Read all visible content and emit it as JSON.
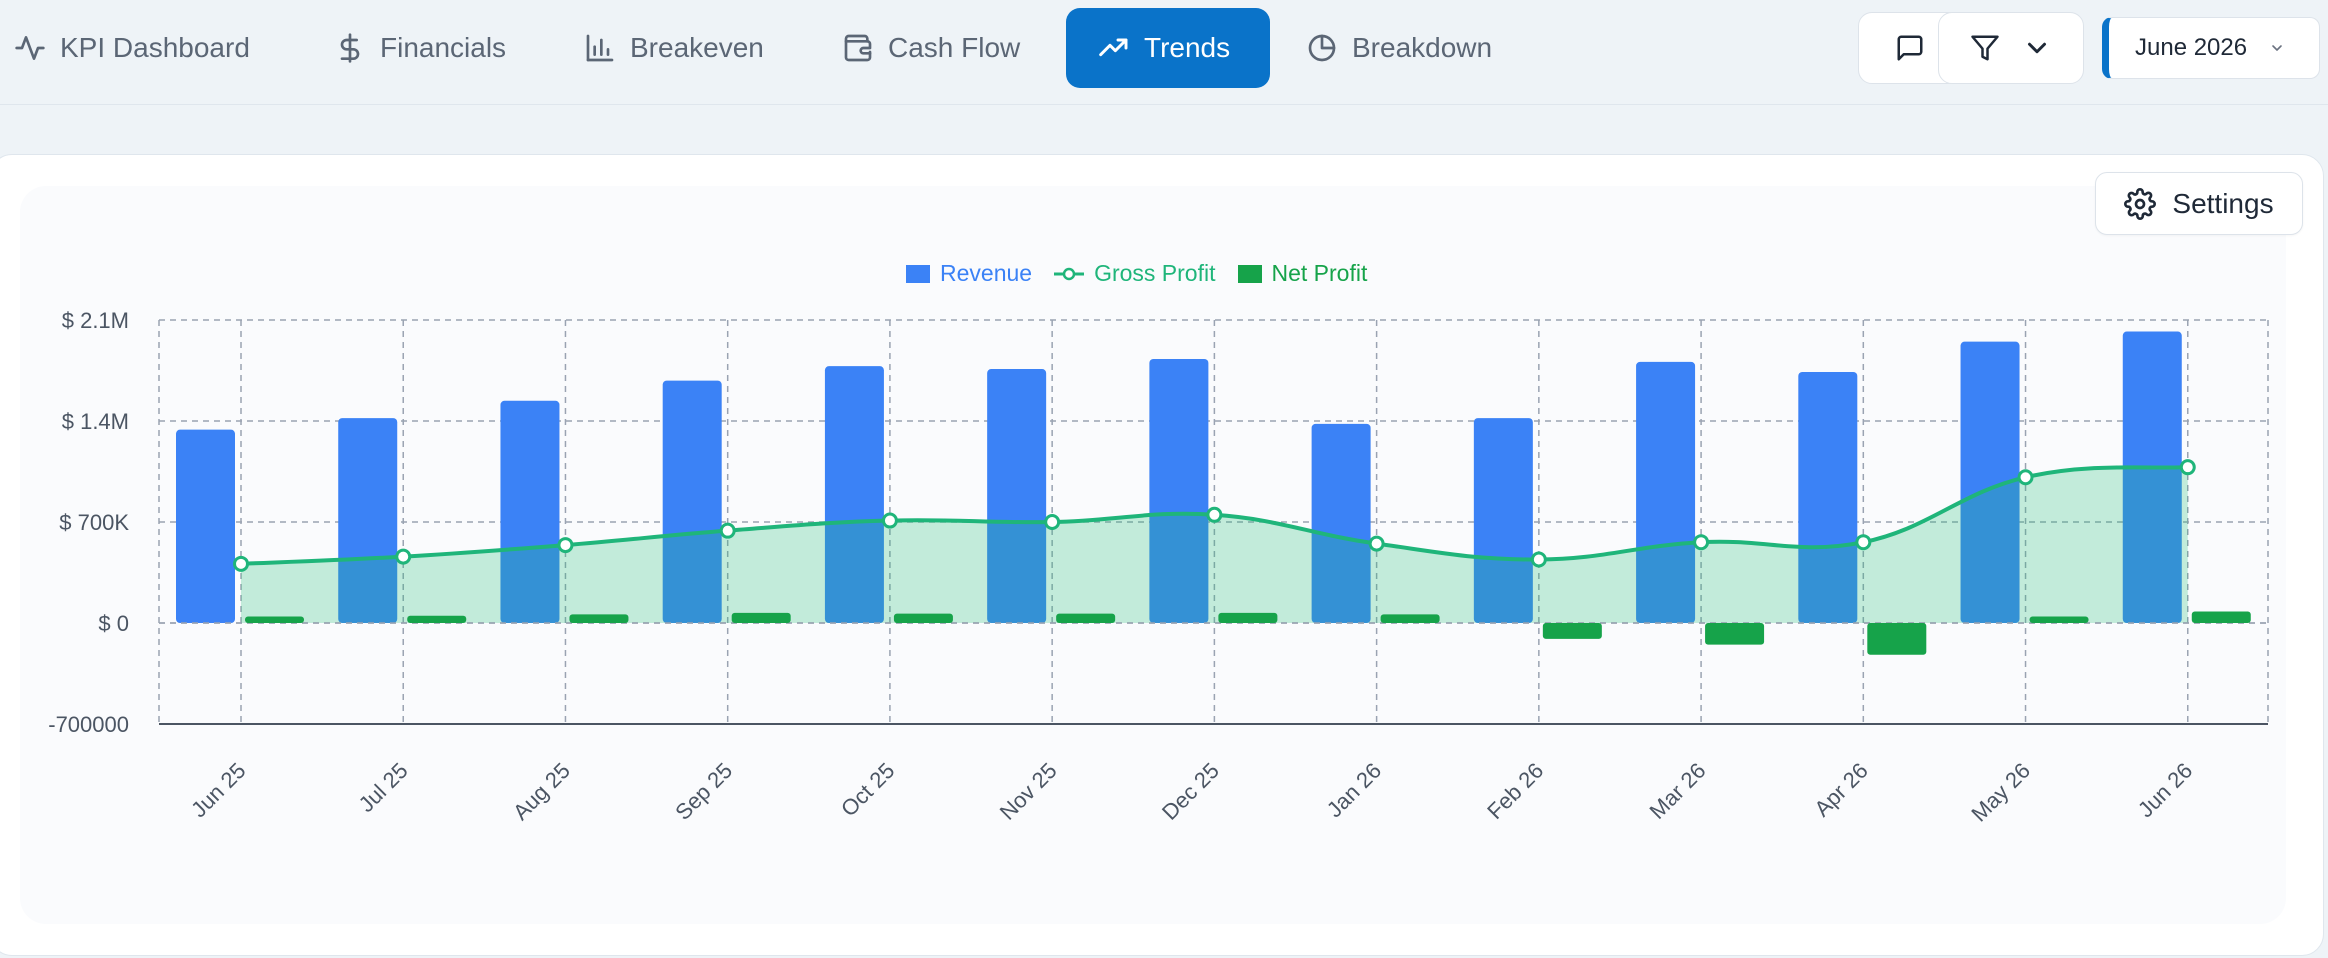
{
  "nav": {
    "tabs": [
      {
        "label": "KPI Dashboard",
        "icon": "activity-icon"
      },
      {
        "label": "Financials",
        "icon": "dollar-icon"
      },
      {
        "label": "Breakeven",
        "icon": "bar-chart-icon"
      },
      {
        "label": "Cash Flow",
        "icon": "wallet-icon"
      },
      {
        "label": "Trends",
        "icon": "trending-up-icon",
        "active": true
      },
      {
        "label": "Breakdown",
        "icon": "pie-chart-icon"
      }
    ],
    "period": "June 2026"
  },
  "toolbar": {
    "comment_icon": "message-square-icon",
    "filter_icon": "filter-icon"
  },
  "settings": {
    "label": "Settings"
  },
  "colors": {
    "accent": "#0a73c9",
    "revenue": "#3b82f6",
    "gross_profit": "#1fb57a",
    "net_profit": "#16a34a"
  },
  "chart_data": {
    "type": "bar",
    "categories": [
      "Jun 25",
      "Jul 25",
      "Aug 25",
      "Sep 25",
      "Oct 25",
      "Nov 25",
      "Dec 25",
      "Jan 26",
      "Feb 26",
      "Mar 26",
      "Apr 26",
      "May 26",
      "Jun 26"
    ],
    "series": [
      {
        "name": "Revenue",
        "type": "bar",
        "values": [
          1340000,
          1420000,
          1540000,
          1680000,
          1780000,
          1760000,
          1830000,
          1380000,
          1420000,
          1810000,
          1740000,
          1950000,
          2020000
        ]
      },
      {
        "name": "Gross Profit",
        "type": "area-line",
        "values": [
          410000,
          460000,
          540000,
          640000,
          710000,
          700000,
          750000,
          550000,
          440000,
          560000,
          560000,
          1010000,
          1080000
        ]
      },
      {
        "name": "Net Profit",
        "type": "bar",
        "values": [
          45000,
          50000,
          60000,
          70000,
          65000,
          65000,
          70000,
          60000,
          -110000,
          -150000,
          -220000,
          45000,
          80000
        ]
      }
    ],
    "y_ticks": [
      "$ 2.1M",
      "$ 1.4M",
      "$ 700K",
      "$ 0",
      "-700000"
    ],
    "ylim": [
      -700000,
      2100000
    ],
    "grid": true,
    "legend_position": "top-center"
  }
}
